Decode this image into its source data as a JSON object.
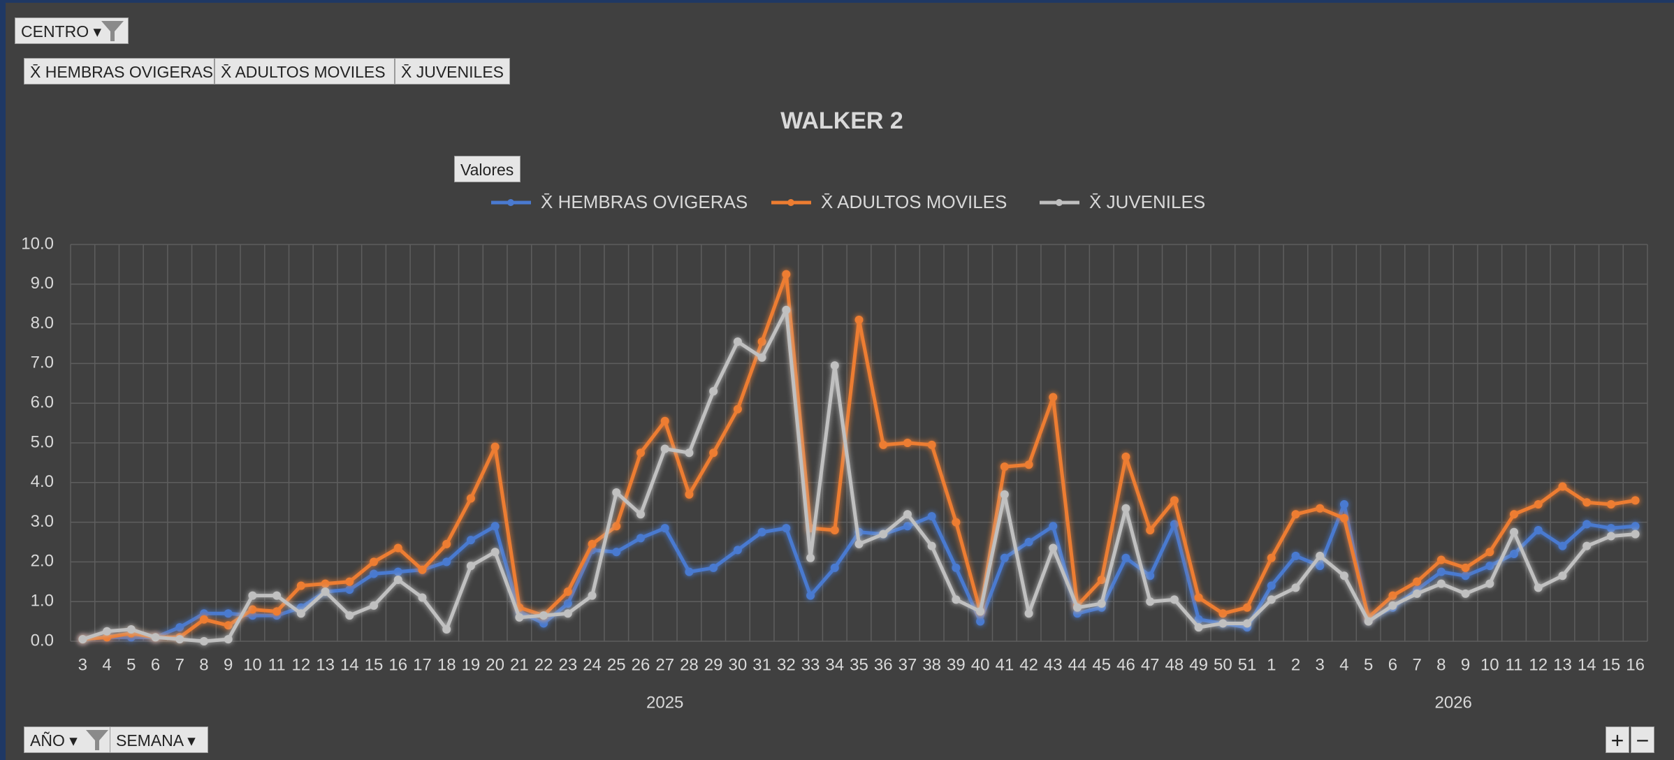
{
  "filter_button": "CENTRO",
  "field_buttons": [
    "X̄ HEMBRAS OVIGERAS",
    "X̄ ADULTOS MOVILES",
    "X̄ JUVENILES"
  ],
  "values_button": "Valores",
  "axis_buttons": [
    "AÑO",
    "SEMANA"
  ],
  "chart_data": {
    "type": "line",
    "title": "WALKER 2",
    "groups": [
      {
        "label": "2025",
        "categories": [
          "3",
          "4",
          "5",
          "6",
          "7",
          "8",
          "9",
          "10",
          "11",
          "12",
          "13",
          "14",
          "15",
          "16",
          "17",
          "18",
          "19",
          "20",
          "21",
          "22",
          "23",
          "24",
          "25",
          "26",
          "27",
          "28",
          "29",
          "30",
          "31",
          "32",
          "33",
          "34",
          "35",
          "36",
          "37",
          "38",
          "39",
          "40",
          "41",
          "42",
          "43",
          "44",
          "45",
          "46",
          "47",
          "48",
          "49",
          "50",
          "51"
        ]
      },
      {
        "label": "2026",
        "categories": [
          "1",
          "2",
          "3",
          "4",
          "5",
          "6",
          "7",
          "8",
          "9",
          "10",
          "11",
          "12",
          "13",
          "14",
          "15",
          "16"
        ]
      }
    ],
    "series": [
      {
        "name": "X̄ HEMBRAS OVIGERAS",
        "color": "#4a7ad0",
        "values": [
          0.05,
          0.1,
          0.1,
          0.1,
          0.35,
          0.7,
          0.7,
          0.65,
          0.65,
          0.85,
          1.25,
          1.3,
          1.7,
          1.75,
          1.8,
          2.0,
          2.55,
          2.9,
          0.75,
          0.45,
          0.95,
          2.3,
          2.25,
          2.6,
          2.85,
          1.75,
          1.85,
          2.3,
          2.75,
          2.85,
          1.15,
          1.85,
          2.75,
          2.7,
          2.9,
          3.15,
          1.85,
          0.5,
          2.1,
          2.5,
          2.9,
          0.7,
          0.85,
          2.1,
          1.65,
          2.95,
          0.55,
          0.45,
          0.35,
          1.4,
          2.15,
          1.9,
          3.45,
          0.55,
          0.85,
          1.3,
          1.75,
          1.65,
          1.9,
          2.2,
          2.8,
          2.4,
          2.95,
          2.85,
          2.9
        ]
      },
      {
        "name": "X̄ ADULTOS MOVILES",
        "color": "#ed7d31",
        "values": [
          0.05,
          0.1,
          0.2,
          0.1,
          0.1,
          0.55,
          0.4,
          0.8,
          0.75,
          1.4,
          1.45,
          1.5,
          2.0,
          2.35,
          1.8,
          2.45,
          3.6,
          4.9,
          0.85,
          0.65,
          1.25,
          2.45,
          2.9,
          4.75,
          5.55,
          3.7,
          4.75,
          5.85,
          7.55,
          9.25,
          2.85,
          2.8,
          8.1,
          4.95,
          5.0,
          4.95,
          3.0,
          0.75,
          4.4,
          4.45,
          6.15,
          0.9,
          1.55,
          4.65,
          2.8,
          3.55,
          1.1,
          0.7,
          0.85,
          2.1,
          3.2,
          3.35,
          3.1,
          0.6,
          1.15,
          1.5,
          2.05,
          1.85,
          2.25,
          3.2,
          3.45,
          3.9,
          3.5,
          3.45,
          3.55
        ]
      },
      {
        "name": "X̄ JUVENILES",
        "color": "#c0c0c0",
        "values": [
          0.05,
          0.25,
          0.3,
          0.1,
          0.05,
          0.0,
          0.05,
          1.15,
          1.15,
          0.7,
          1.25,
          0.65,
          0.9,
          1.55,
          1.1,
          0.3,
          1.9,
          2.25,
          0.6,
          0.65,
          0.7,
          1.15,
          3.75,
          3.2,
          4.85,
          4.75,
          6.3,
          7.55,
          7.15,
          8.35,
          2.1,
          6.95,
          2.45,
          2.7,
          3.2,
          2.4,
          1.05,
          0.75,
          3.7,
          0.7,
          2.35,
          0.85,
          0.95,
          3.35,
          1.0,
          1.05,
          0.35,
          0.45,
          0.45,
          1.05,
          1.35,
          2.15,
          1.65,
          0.5,
          0.9,
          1.2,
          1.45,
          1.2,
          1.45,
          2.75,
          1.35,
          1.65,
          2.4,
          2.65,
          2.7
        ]
      }
    ],
    "ylim": [
      0,
      10
    ],
    "yticks": [
      {
        "value": 0,
        "label": "0.0"
      },
      {
        "value": 1,
        "label": "1.0"
      },
      {
        "value": 2,
        "label": "2.0"
      },
      {
        "value": 3,
        "label": "3.0"
      },
      {
        "value": 4,
        "label": "4.0"
      },
      {
        "value": 5,
        "label": "5.0"
      },
      {
        "value": 6,
        "label": "6.0"
      },
      {
        "value": 7,
        "label": "7.0"
      },
      {
        "value": 8,
        "label": "8.0"
      },
      {
        "value": 9,
        "label": "9.0"
      },
      {
        "value": 10,
        "label": "10.0"
      }
    ],
    "grid": true,
    "legend": "top"
  }
}
